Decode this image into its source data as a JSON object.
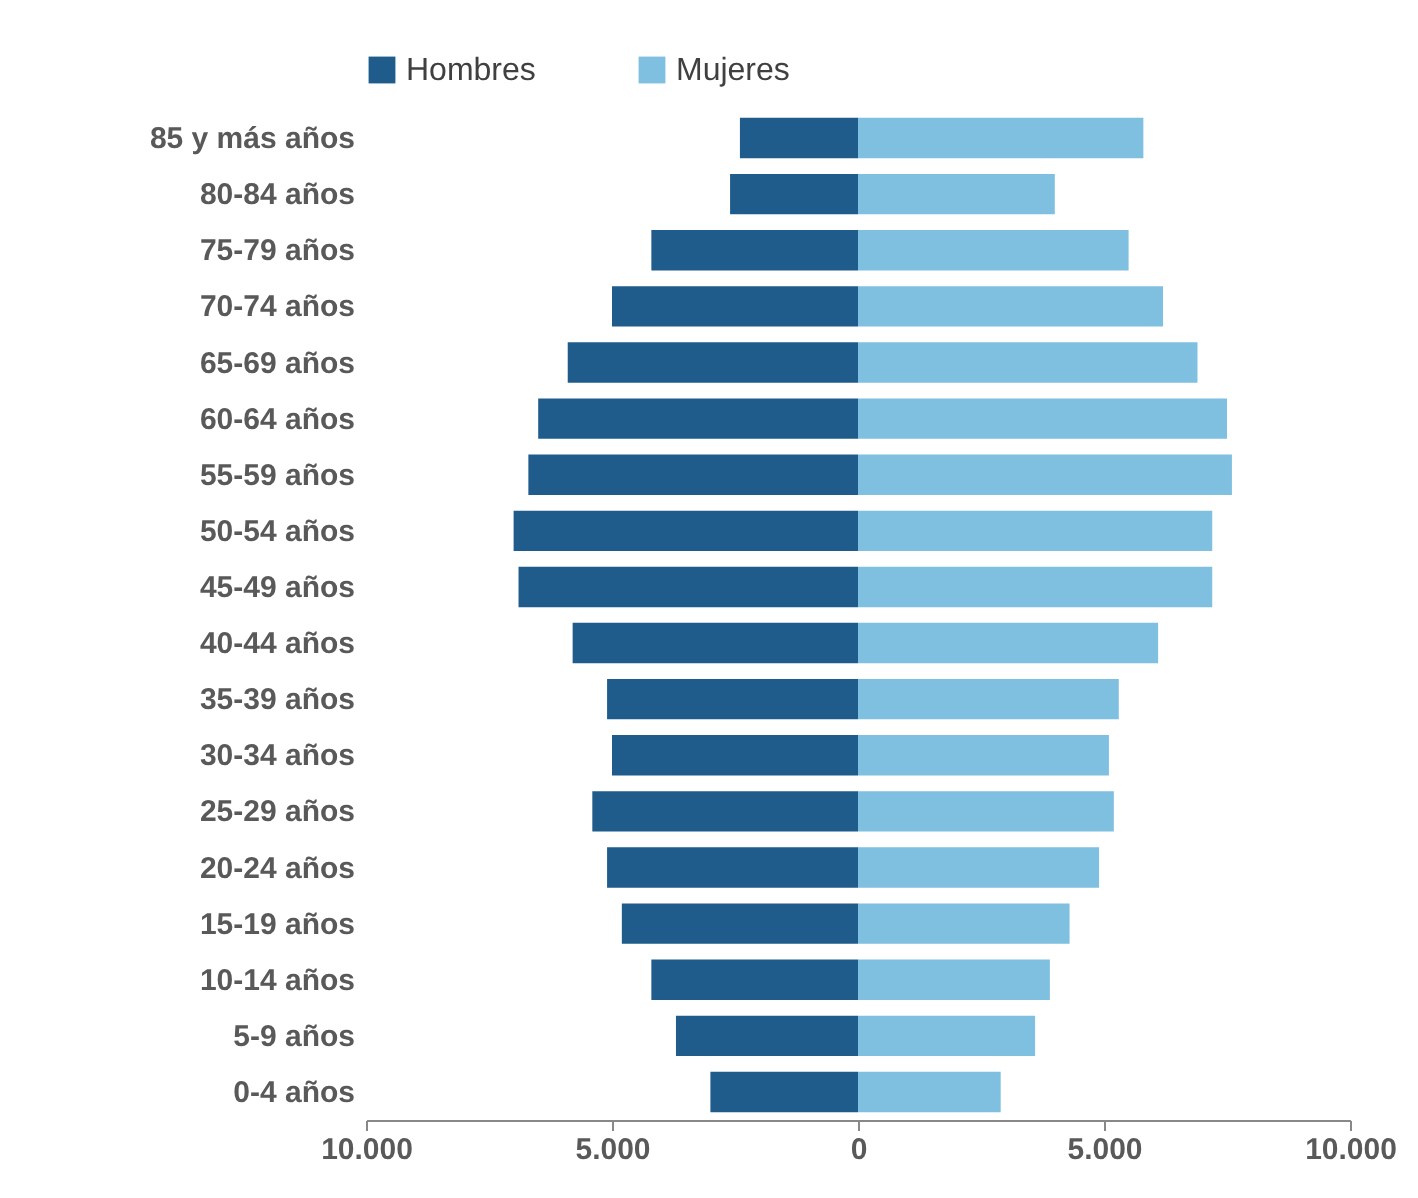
{
  "chart_data": {
    "type": "bar",
    "orientation": "horizontal",
    "stacked": true,
    "legend": "top",
    "grid": false,
    "categories": [
      "85 y más años",
      "80-84 años",
      "75-79 años",
      "70-74 años",
      "65-69 años",
      "60-64 años",
      "55-59 años",
      "50-54 años",
      "45-49 años",
      "40-44 años",
      "35-39 años",
      "30-34 años",
      "25-29 años",
      "20-24 años",
      "15-19 años",
      "10-14 años",
      "5-9 años",
      "0-4 años"
    ],
    "xlim": [
      -10000,
      10000
    ],
    "xticks": [
      {
        "value": -10000,
        "label": "10.000"
      },
      {
        "value": -5000,
        "label": "5.000"
      },
      0,
      {
        "value": 5000,
        "label": "5.000"
      },
      {
        "value": 10000,
        "label": "10.000"
      }
    ],
    "series": [
      {
        "name": "Hombres",
        "color": "#1f5c8b",
        "values": [
          -2400,
          -2600,
          -4200,
          -5000,
          -5900,
          -6500,
          -6700,
          -7000,
          -6900,
          -5800,
          -5100,
          -5000,
          -5400,
          -5100,
          -4800,
          -4200,
          -3700,
          -3000
        ]
      },
      {
        "name": "Mujeres",
        "color": "#7fbfe0",
        "values": [
          5800,
          4000,
          5500,
          6200,
          6900,
          7500,
          7600,
          7200,
          7200,
          6100,
          5300,
          5100,
          5200,
          4900,
          4300,
          3900,
          3600,
          2900
        ]
      }
    ]
  }
}
